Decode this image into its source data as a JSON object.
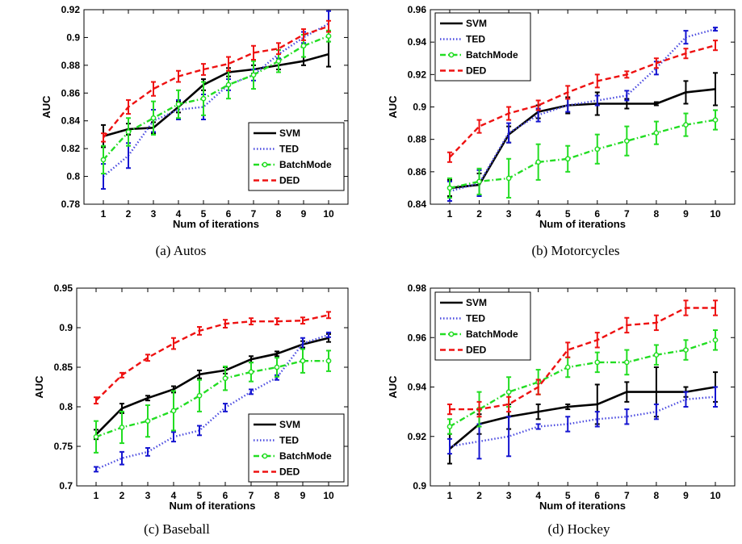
{
  "chart_data": [
    {
      "type": "line",
      "caption": "(a)  Autos",
      "xlabel": "Num of iterations",
      "ylabel": "AUC",
      "x": [
        1,
        2,
        3,
        4,
        5,
        6,
        7,
        8,
        9,
        10
      ],
      "ylim": [
        0.78,
        0.92
      ],
      "yticks": [
        "0.78",
        "0.8",
        "0.82",
        "0.84",
        "0.86",
        "0.88",
        "0.9",
        "0.92"
      ],
      "legend_position": "center-right",
      "series": [
        {
          "name": "SVM",
          "color": "#000000",
          "style": "solid",
          "values": [
            0.829,
            0.834,
            0.835,
            0.85,
            0.866,
            0.875,
            0.877,
            0.88,
            0.883,
            0.888
          ],
          "err": [
            0.008,
            0.004,
            0.004,
            0.004,
            0.004,
            0.003,
            0.003,
            0.003,
            0.003,
            0.009
          ]
        },
        {
          "name": "TED",
          "color": "#4a4ae0",
          "style": "dotted",
          "values": [
            0.8,
            0.815,
            0.84,
            0.848,
            0.85,
            0.866,
            0.873,
            0.888,
            0.9,
            0.91
          ],
          "err": [
            0.009,
            0.009,
            0.008,
            0.007,
            0.009,
            0.004,
            0.004,
            0.003,
            0.004,
            0.009
          ]
        },
        {
          "name": "BatchMode",
          "color": "#22dd22",
          "style": "dashdot",
          "marker": "circle",
          "values": [
            0.812,
            0.832,
            0.842,
            0.852,
            0.856,
            0.866,
            0.873,
            0.883,
            0.894,
            0.901
          ],
          "err": [
            0.01,
            0.01,
            0.012,
            0.01,
            0.012,
            0.01,
            0.01,
            0.008,
            0.008,
            0.004
          ]
        },
        {
          "name": "DED",
          "color": "#ee1111",
          "style": "dashed",
          "values": [
            0.828,
            0.85,
            0.863,
            0.872,
            0.877,
            0.881,
            0.889,
            0.892,
            0.902,
            0.908
          ],
          "err": [
            0.003,
            0.005,
            0.005,
            0.004,
            0.004,
            0.005,
            0.005,
            0.004,
            0.004,
            0.004
          ]
        }
      ]
    },
    {
      "type": "line",
      "caption": "(b)  Motorcycles",
      "xlabel": "Num of iterations",
      "ylabel": "AUC",
      "x": [
        1,
        2,
        3,
        4,
        5,
        6,
        7,
        8,
        9,
        10
      ],
      "ylim": [
        0.84,
        0.96
      ],
      "yticks": [
        "0.84",
        "0.86",
        "0.88",
        "0.9",
        "0.92",
        "0.94",
        "0.96"
      ],
      "legend_position": "top-left",
      "series": [
        {
          "name": "SVM",
          "color": "#000000",
          "style": "solid",
          "values": [
            0.85,
            0.852,
            0.883,
            0.897,
            0.901,
            0.902,
            0.902,
            0.902,
            0.909,
            0.911
          ],
          "err": [
            0.005,
            0.007,
            0.005,
            0.004,
            0.005,
            0.007,
            0.003,
            0.001,
            0.007,
            0.01
          ]
        },
        {
          "name": "TED",
          "color": "#4a4ae0",
          "style": "dotted",
          "values": [
            0.848,
            0.853,
            0.884,
            0.895,
            0.901,
            0.904,
            0.907,
            0.924,
            0.943,
            0.948
          ],
          "err": [
            0.006,
            0.008,
            0.006,
            0.004,
            0.004,
            0.003,
            0.003,
            0.004,
            0.004,
            0.001
          ]
        },
        {
          "name": "BatchMode",
          "color": "#22dd22",
          "style": "dashdot",
          "marker": "circle",
          "values": [
            0.85,
            0.854,
            0.856,
            0.866,
            0.868,
            0.874,
            0.879,
            0.884,
            0.889,
            0.892
          ],
          "err": [
            0.006,
            0.008,
            0.012,
            0.011,
            0.008,
            0.009,
            0.009,
            0.007,
            0.007,
            0.006
          ]
        },
        {
          "name": "DED",
          "color": "#ee1111",
          "style": "dashed",
          "values": [
            0.869,
            0.888,
            0.896,
            0.901,
            0.909,
            0.916,
            0.92,
            0.927,
            0.933,
            0.938
          ],
          "err": [
            0.003,
            0.004,
            0.004,
            0.003,
            0.004,
            0.004,
            0.002,
            0.003,
            0.003,
            0.003
          ]
        }
      ]
    },
    {
      "type": "line",
      "caption": "(c)  Baseball",
      "xlabel": "Num of iterations",
      "ylabel": "AUC",
      "x": [
        1,
        2,
        3,
        4,
        5,
        6,
        7,
        8,
        9,
        10
      ],
      "ylim": [
        0.7,
        0.95
      ],
      "yticks": [
        "0.7",
        "0.75",
        "0.8",
        "0.85",
        "0.9",
        "0.95"
      ],
      "legend_position": "bottom-right",
      "series": [
        {
          "name": "SVM",
          "color": "#000000",
          "style": "solid",
          "values": [
            0.765,
            0.798,
            0.811,
            0.822,
            0.841,
            0.846,
            0.86,
            0.867,
            0.879,
            0.887
          ],
          "err": [
            0.006,
            0.006,
            0.003,
            0.004,
            0.005,
            0.004,
            0.004,
            0.003,
            0.004,
            0.005
          ]
        },
        {
          "name": "TED",
          "color": "#4a4ae0",
          "style": "dotted",
          "values": [
            0.721,
            0.735,
            0.743,
            0.762,
            0.77,
            0.799,
            0.819,
            0.837,
            0.88,
            0.891
          ],
          "err": [
            0.003,
            0.008,
            0.005,
            0.006,
            0.006,
            0.005,
            0.003,
            0.003,
            0.007,
            0.003
          ]
        },
        {
          "name": "BatchMode",
          "color": "#22dd22",
          "style": "dashdot",
          "marker": "circle",
          "values": [
            0.762,
            0.774,
            0.782,
            0.795,
            0.814,
            0.836,
            0.844,
            0.85,
            0.858,
            0.858
          ],
          "err": [
            0.02,
            0.02,
            0.02,
            0.025,
            0.02,
            0.015,
            0.012,
            0.012,
            0.015,
            0.013
          ]
        },
        {
          "name": "DED",
          "color": "#ee1111",
          "style": "dashed",
          "values": [
            0.808,
            0.84,
            0.862,
            0.88,
            0.896,
            0.905,
            0.908,
            0.908,
            0.909,
            0.916
          ],
          "err": [
            0.004,
            0.003,
            0.004,
            0.007,
            0.005,
            0.005,
            0.004,
            0.004,
            0.004,
            0.004
          ]
        }
      ]
    },
    {
      "type": "line",
      "caption": "(d)  Hockey",
      "xlabel": "Num of iterations",
      "ylabel": "AUC",
      "x": [
        1,
        2,
        3,
        4,
        5,
        6,
        7,
        8,
        9,
        10
      ],
      "ylim": [
        0.9,
        0.98
      ],
      "yticks": [
        "0.9",
        "0.92",
        "0.94",
        "0.96",
        "0.98"
      ],
      "legend_position": "top-left",
      "series": [
        {
          "name": "SVM",
          "color": "#000000",
          "style": "solid",
          "values": [
            0.915,
            0.925,
            0.928,
            0.93,
            0.932,
            0.933,
            0.938,
            0.938,
            0.938,
            0.94
          ],
          "err": [
            0.006,
            0.004,
            0.005,
            0.003,
            0.001,
            0.008,
            0.004,
            0.01,
            0.002,
            0.006
          ]
        },
        {
          "name": "TED",
          "color": "#4a4ae0",
          "style": "dotted",
          "values": [
            0.916,
            0.918,
            0.92,
            0.924,
            0.925,
            0.927,
            0.928,
            0.93,
            0.935,
            0.936
          ],
          "err": [
            0.003,
            0.007,
            0.008,
            0.001,
            0.003,
            0.003,
            0.003,
            0.003,
            0.003,
            0.004
          ]
        },
        {
          "name": "BatchMode",
          "color": "#22dd22",
          "style": "dashdot",
          "marker": "circle",
          "values": [
            0.924,
            0.931,
            0.938,
            0.942,
            0.948,
            0.95,
            0.95,
            0.953,
            0.955,
            0.959
          ],
          "err": [
            0.003,
            0.007,
            0.006,
            0.005,
            0.004,
            0.004,
            0.005,
            0.004,
            0.004,
            0.004
          ]
        },
        {
          "name": "DED",
          "color": "#ee1111",
          "style": "dashed",
          "values": [
            0.931,
            0.931,
            0.933,
            0.94,
            0.955,
            0.959,
            0.965,
            0.966,
            0.972,
            0.972
          ],
          "err": [
            0.002,
            0.003,
            0.003,
            0.003,
            0.003,
            0.003,
            0.003,
            0.003,
            0.003,
            0.003
          ]
        }
      ]
    }
  ]
}
